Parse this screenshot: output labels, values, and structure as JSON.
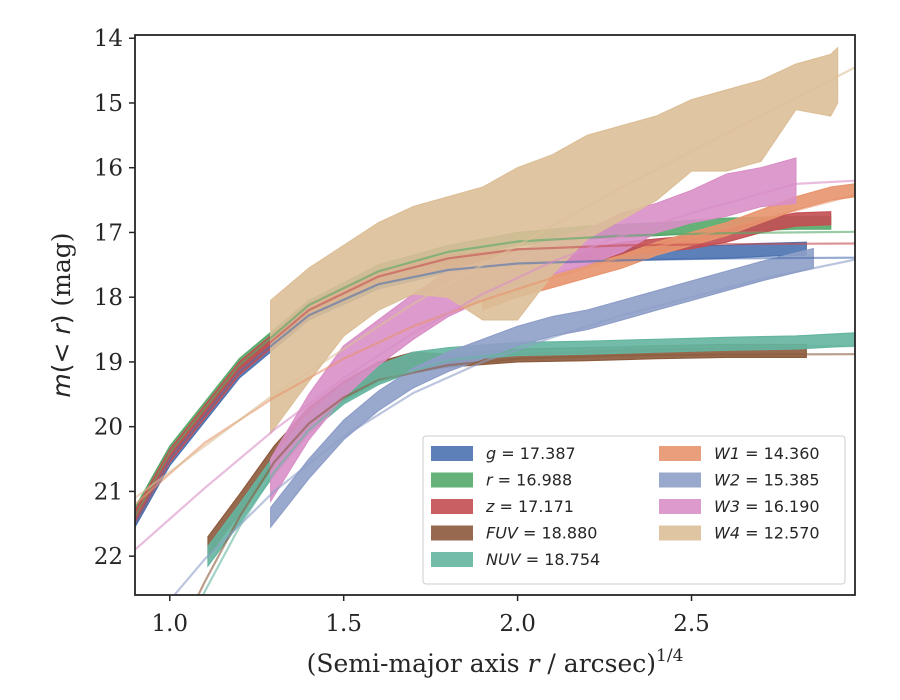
{
  "chart_data": {
    "type": "line",
    "xlabel": "(Semi-major axis r / arcsec)",
    "xlabel_main": "(Semi-major axis ",
    "xlabel_var": "r",
    "xlabel_rest": " / arcsec)",
    "xlabel_sup": "1/4",
    "ylabel_var": "m",
    "ylabel_mid": "(< ",
    "ylabel_r": "r",
    "ylabel_close": ")",
    "ylabel_unit": " (mag)",
    "xlim": [
      0.9,
      2.97
    ],
    "ylim": [
      22.6,
      13.95
    ],
    "y_inverted": true,
    "xticks": [
      1.0,
      1.5,
      2.0,
      2.5
    ],
    "xtick_labels": [
      "1.0",
      "1.5",
      "2.0",
      "2.5"
    ],
    "yticks": [
      14,
      15,
      16,
      17,
      18,
      19,
      20,
      21,
      22
    ],
    "ytick_labels": [
      "14",
      "15",
      "16",
      "17",
      "18",
      "19",
      "20",
      "21",
      "22"
    ],
    "grid": false,
    "legend_position": "lower-right",
    "series": [
      {
        "name": "g",
        "label": "g = 17.387",
        "asymptote_label": "17.387",
        "color": "#4c72b0",
        "band": [
          [
            0.9,
            21.55,
            21.35
          ],
          [
            1.0,
            20.6,
            20.4
          ],
          [
            1.2,
            19.25,
            19.05
          ],
          [
            1.4,
            18.35,
            18.15
          ],
          [
            1.6,
            17.87,
            17.67
          ],
          [
            1.8,
            17.62,
            17.42
          ],
          [
            2.0,
            17.5,
            17.3
          ],
          [
            2.2,
            17.46,
            17.26
          ],
          [
            2.4,
            17.42,
            17.22
          ],
          [
            2.6,
            17.4,
            17.2
          ],
          [
            2.7,
            17.37,
            17.17
          ],
          [
            2.83,
            17.35,
            17.15
          ]
        ],
        "fit": [
          [
            0.9,
            21.5
          ],
          [
            1.0,
            20.5
          ],
          [
            1.2,
            19.15
          ],
          [
            1.4,
            18.28
          ],
          [
            1.6,
            17.8
          ],
          [
            1.8,
            17.58
          ],
          [
            2.0,
            17.48
          ],
          [
            2.3,
            17.43
          ],
          [
            2.6,
            17.4
          ],
          [
            2.97,
            17.39
          ]
        ]
      },
      {
        "name": "r",
        "label": "r = 16.988",
        "asymptote_label": "16.988",
        "color": "#55a868",
        "band": [
          [
            0.9,
            21.45,
            21.25
          ],
          [
            1.0,
            20.5,
            20.3
          ],
          [
            1.2,
            19.15,
            18.95
          ],
          [
            1.4,
            18.25,
            18.05
          ],
          [
            1.6,
            17.7,
            17.5
          ],
          [
            1.8,
            17.4,
            17.2
          ],
          [
            2.0,
            17.2,
            17.0
          ],
          [
            2.2,
            17.1,
            16.9
          ],
          [
            2.4,
            17.05,
            16.85
          ],
          [
            2.6,
            16.98,
            16.78
          ],
          [
            2.8,
            16.95,
            16.75
          ],
          [
            2.9,
            16.95,
            16.75
          ]
        ],
        "fit": [
          [
            0.9,
            21.4
          ],
          [
            1.0,
            20.4
          ],
          [
            1.2,
            19.05
          ],
          [
            1.4,
            18.12
          ],
          [
            1.6,
            17.6
          ],
          [
            1.8,
            17.3
          ],
          [
            2.0,
            17.14
          ],
          [
            2.3,
            17.05
          ],
          [
            2.6,
            17.01
          ],
          [
            2.97,
            16.99
          ]
        ]
      },
      {
        "name": "z",
        "label": "z = 17.171",
        "asymptote_label": "17.171",
        "color": "#c44e52",
        "band": [
          [
            0.9,
            21.5,
            21.3
          ],
          [
            1.0,
            20.55,
            20.35
          ],
          [
            1.2,
            19.2,
            19.0
          ],
          [
            1.4,
            18.3,
            18.1
          ],
          [
            1.6,
            17.8,
            17.6
          ],
          [
            1.8,
            17.55,
            17.35
          ],
          [
            2.0,
            17.45,
            17.25
          ],
          [
            2.2,
            17.45,
            17.25
          ],
          [
            2.3,
            17.35,
            17.15
          ],
          [
            2.5,
            17.25,
            17.05
          ],
          [
            2.6,
            17.15,
            16.95
          ],
          [
            2.7,
            17.0,
            16.8
          ],
          [
            2.8,
            16.9,
            16.7
          ],
          [
            2.9,
            16.88,
            16.68
          ]
        ],
        "fit": [
          [
            0.9,
            21.45
          ],
          [
            1.0,
            20.45
          ],
          [
            1.2,
            19.1
          ],
          [
            1.4,
            18.2
          ],
          [
            1.6,
            17.68
          ],
          [
            1.8,
            17.4
          ],
          [
            2.0,
            17.26
          ],
          [
            2.3,
            17.2
          ],
          [
            2.6,
            17.18
          ],
          [
            2.97,
            17.17
          ]
        ]
      },
      {
        "name": "FUV",
        "label": "FUV = 18.880",
        "asymptote_label": "18.880",
        "color": "#8c5a3c",
        "band": [
          [
            1.11,
            22.0,
            21.7
          ],
          [
            1.2,
            21.35,
            21.05
          ],
          [
            1.3,
            20.6,
            20.3
          ],
          [
            1.4,
            20.0,
            19.7
          ],
          [
            1.5,
            19.6,
            19.3
          ],
          [
            1.6,
            19.3,
            19.0
          ],
          [
            1.7,
            19.15,
            18.85
          ],
          [
            1.8,
            19.08,
            18.88
          ],
          [
            2.0,
            19.0,
            18.8
          ],
          [
            2.2,
            18.98,
            18.78
          ],
          [
            2.4,
            18.95,
            18.75
          ],
          [
            2.6,
            18.93,
            18.73
          ],
          [
            2.83,
            18.93,
            18.73
          ]
        ],
        "fit": [
          [
            1.0,
            23.5
          ],
          [
            1.1,
            22.4
          ],
          [
            1.2,
            21.4
          ],
          [
            1.3,
            20.55
          ],
          [
            1.4,
            19.95
          ],
          [
            1.5,
            19.55
          ],
          [
            1.6,
            19.28
          ],
          [
            1.8,
            19.05
          ],
          [
            2.0,
            18.95
          ],
          [
            2.3,
            18.9
          ],
          [
            2.6,
            18.885
          ],
          [
            2.97,
            18.88
          ]
        ]
      },
      {
        "name": "NUV",
        "label": "NUV = 18.754",
        "asymptote_label": "18.754",
        "color": "#64b5a0",
        "band": [
          [
            1.11,
            22.15,
            21.85
          ],
          [
            1.2,
            21.5,
            21.2
          ],
          [
            1.3,
            20.75,
            20.45
          ],
          [
            1.4,
            20.1,
            19.8
          ],
          [
            1.5,
            19.65,
            19.35
          ],
          [
            1.6,
            19.35,
            19.05
          ],
          [
            1.7,
            19.15,
            18.85
          ],
          [
            1.8,
            18.98,
            18.78
          ],
          [
            2.0,
            18.9,
            18.7
          ],
          [
            2.2,
            18.88,
            18.68
          ],
          [
            2.4,
            18.85,
            18.65
          ],
          [
            2.6,
            18.82,
            18.62
          ],
          [
            2.8,
            18.8,
            18.6
          ],
          [
            2.97,
            18.75,
            18.55
          ]
        ],
        "fit": [
          [
            1.05,
            23.1
          ],
          [
            1.1,
            22.55
          ],
          [
            1.2,
            21.55
          ],
          [
            1.3,
            20.7
          ],
          [
            1.4,
            20.05
          ],
          [
            1.5,
            19.6
          ],
          [
            1.6,
            19.3
          ],
          [
            1.8,
            18.98
          ],
          [
            2.0,
            18.85
          ],
          [
            2.3,
            18.78
          ],
          [
            2.6,
            18.76
          ],
          [
            2.97,
            18.755
          ]
        ]
      },
      {
        "name": "W1",
        "label": "W1 = 14.360",
        "asymptote_label": "14.360",
        "color": "#e8956e",
        "band": [
          [
            1.9,
            18.2,
            18.0
          ],
          [
            2.0,
            18.0,
            17.8
          ],
          [
            2.1,
            17.85,
            17.65
          ],
          [
            2.2,
            17.7,
            17.5
          ],
          [
            2.3,
            17.55,
            17.35
          ],
          [
            2.4,
            17.35,
            17.15
          ],
          [
            2.5,
            17.2,
            17.0
          ],
          [
            2.6,
            17.05,
            16.85
          ],
          [
            2.7,
            16.85,
            16.65
          ],
          [
            2.8,
            16.65,
            16.45
          ],
          [
            2.9,
            16.5,
            16.3
          ],
          [
            2.97,
            16.45,
            16.25
          ]
        ],
        "fit": [
          [
            0.9,
            21.2
          ],
          [
            1.1,
            20.25
          ],
          [
            1.3,
            19.55
          ],
          [
            1.5,
            18.95
          ],
          [
            1.7,
            18.45
          ],
          [
            1.9,
            18.05
          ],
          [
            2.1,
            17.7
          ],
          [
            2.3,
            17.38
          ],
          [
            2.5,
            17.08
          ],
          [
            2.7,
            16.8
          ],
          [
            2.97,
            16.42
          ]
        ]
      },
      {
        "name": "W2",
        "label": "W2 = 15.385",
        "asymptote_label": "15.385",
        "color": "#8e9ec8",
        "band": [
          [
            1.29,
            21.55,
            21.25
          ],
          [
            1.4,
            20.8,
            20.5
          ],
          [
            1.5,
            20.2,
            19.9
          ],
          [
            1.6,
            19.75,
            19.45
          ],
          [
            1.7,
            19.4,
            19.1
          ],
          [
            1.8,
            19.15,
            18.85
          ],
          [
            1.9,
            18.95,
            18.65
          ],
          [
            2.0,
            18.75,
            18.45
          ],
          [
            2.1,
            18.6,
            18.3
          ],
          [
            2.2,
            18.5,
            18.2
          ],
          [
            2.3,
            18.35,
            18.05
          ],
          [
            2.4,
            18.2,
            17.9
          ],
          [
            2.5,
            18.05,
            17.75
          ],
          [
            2.6,
            17.9,
            17.6
          ],
          [
            2.7,
            17.75,
            17.45
          ],
          [
            2.85,
            17.55,
            17.25
          ]
        ],
        "fit": [
          [
            0.95,
            23.0
          ],
          [
            1.1,
            22.05
          ],
          [
            1.3,
            21.0
          ],
          [
            1.5,
            20.15
          ],
          [
            1.7,
            19.48
          ],
          [
            1.9,
            19.0
          ],
          [
            2.1,
            18.62
          ],
          [
            2.3,
            18.28
          ],
          [
            2.5,
            18.0
          ],
          [
            2.7,
            17.72
          ],
          [
            2.97,
            17.42
          ]
        ]
      },
      {
        "name": "W3",
        "label": "W3 = 16.190",
        "asymptote_label": "16.190",
        "color": "#d98fc6",
        "band": [
          [
            1.29,
            21.15,
            20.5
          ],
          [
            1.4,
            20.2,
            19.5
          ],
          [
            1.5,
            19.55,
            18.75
          ],
          [
            1.6,
            19.05,
            18.35
          ],
          [
            1.7,
            18.65,
            17.95
          ],
          [
            1.8,
            18.3,
            17.6
          ],
          [
            1.9,
            18.05,
            17.45
          ],
          [
            2.0,
            17.85,
            17.3
          ],
          [
            2.1,
            17.65,
            17.1
          ],
          [
            2.2,
            17.5,
            16.95
          ],
          [
            2.3,
            17.3,
            16.7
          ],
          [
            2.4,
            17.0,
            16.55
          ],
          [
            2.5,
            16.85,
            16.35
          ],
          [
            2.6,
            16.75,
            16.1
          ],
          [
            2.7,
            16.6,
            16.0
          ],
          [
            2.8,
            16.55,
            15.85
          ]
        ],
        "fit": [
          [
            0.9,
            21.9
          ],
          [
            1.1,
            20.95
          ],
          [
            1.3,
            20.05
          ],
          [
            1.5,
            19.25
          ],
          [
            1.7,
            18.55
          ],
          [
            1.9,
            17.95
          ],
          [
            2.1,
            17.45
          ],
          [
            2.3,
            17.05
          ],
          [
            2.5,
            16.7
          ],
          [
            2.7,
            16.4
          ],
          [
            2.8,
            16.25
          ],
          [
            2.97,
            16.2
          ]
        ]
      },
      {
        "name": "W4",
        "label": "W4 = 12.570",
        "asymptote_label": "12.570",
        "color": "#dcbf98",
        "band": [
          [
            1.29,
            20.1,
            18.05
          ],
          [
            1.4,
            19.3,
            17.55
          ],
          [
            1.5,
            18.6,
            17.2
          ],
          [
            1.6,
            18.2,
            16.85
          ],
          [
            1.7,
            17.95,
            16.6
          ],
          [
            1.8,
            18.0,
            16.45
          ],
          [
            1.9,
            18.35,
            16.3
          ],
          [
            2.0,
            18.35,
            16.0
          ],
          [
            2.1,
            17.65,
            15.8
          ],
          [
            2.2,
            17.1,
            15.5
          ],
          [
            2.3,
            16.8,
            15.35
          ],
          [
            2.4,
            16.5,
            15.2
          ],
          [
            2.5,
            16.05,
            14.95
          ],
          [
            2.6,
            16.05,
            14.8
          ],
          [
            2.7,
            15.9,
            14.65
          ],
          [
            2.8,
            15.1,
            14.4
          ],
          [
            2.9,
            15.2,
            14.25
          ],
          [
            2.92,
            15.0,
            14.15
          ]
        ],
        "fit": [
          [
            0.9,
            21.1
          ],
          [
            1.1,
            20.3
          ],
          [
            1.3,
            19.5
          ],
          [
            1.5,
            18.8
          ],
          [
            1.7,
            18.1
          ],
          [
            1.9,
            17.5
          ],
          [
            2.1,
            16.9
          ],
          [
            2.3,
            16.3
          ],
          [
            2.5,
            15.75
          ],
          [
            2.7,
            15.2
          ],
          [
            2.97,
            14.45
          ]
        ]
      }
    ]
  }
}
